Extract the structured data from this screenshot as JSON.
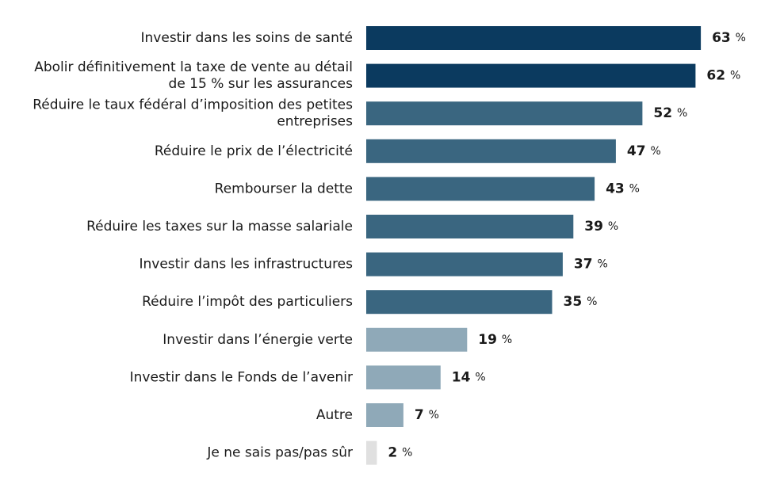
{
  "chart_data": {
    "type": "bar",
    "orientation": "horizontal",
    "categories": [
      [
        "Investir dans les soins de santé"
      ],
      [
        "Abolir définitivement la taxe de vente au détail",
        "de 15 % sur les assurances"
      ],
      [
        "Réduire le taux fédéral d’imposition des petites",
        "entreprises"
      ],
      [
        "Réduire le prix de l’électricité"
      ],
      [
        "Rembourser la dette"
      ],
      [
        "Réduire les taxes sur la masse salariale"
      ],
      [
        "Investir dans les infrastructures"
      ],
      [
        "Réduire l’impôt des particuliers"
      ],
      [
        "Investir dans l’énergie verte"
      ],
      [
        "Investir dans le Fonds de l’avenir"
      ],
      [
        "Autre"
      ],
      [
        "Je ne sais pas/pas sûr"
      ]
    ],
    "values": [
      63,
      62,
      52,
      47,
      43,
      39,
      37,
      35,
      19,
      14,
      7,
      2
    ],
    "value_labels": [
      "63",
      "62",
      "52",
      "47",
      "43",
      "39",
      "37",
      "35",
      "19",
      "14",
      "7",
      "2"
    ],
    "unit_suffix": "%",
    "bar_colors": [
      "#0b3a5f",
      "#0b3a5f",
      "#3a6680",
      "#3a6680",
      "#3a6680",
      "#3a6680",
      "#3a6680",
      "#3a6680",
      "#8fa9b8",
      "#8fa9b8",
      "#8fa9b8",
      "#e0e0e0"
    ],
    "xlim": [
      0,
      100
    ],
    "grid": false,
    "axes_visible": false
  }
}
